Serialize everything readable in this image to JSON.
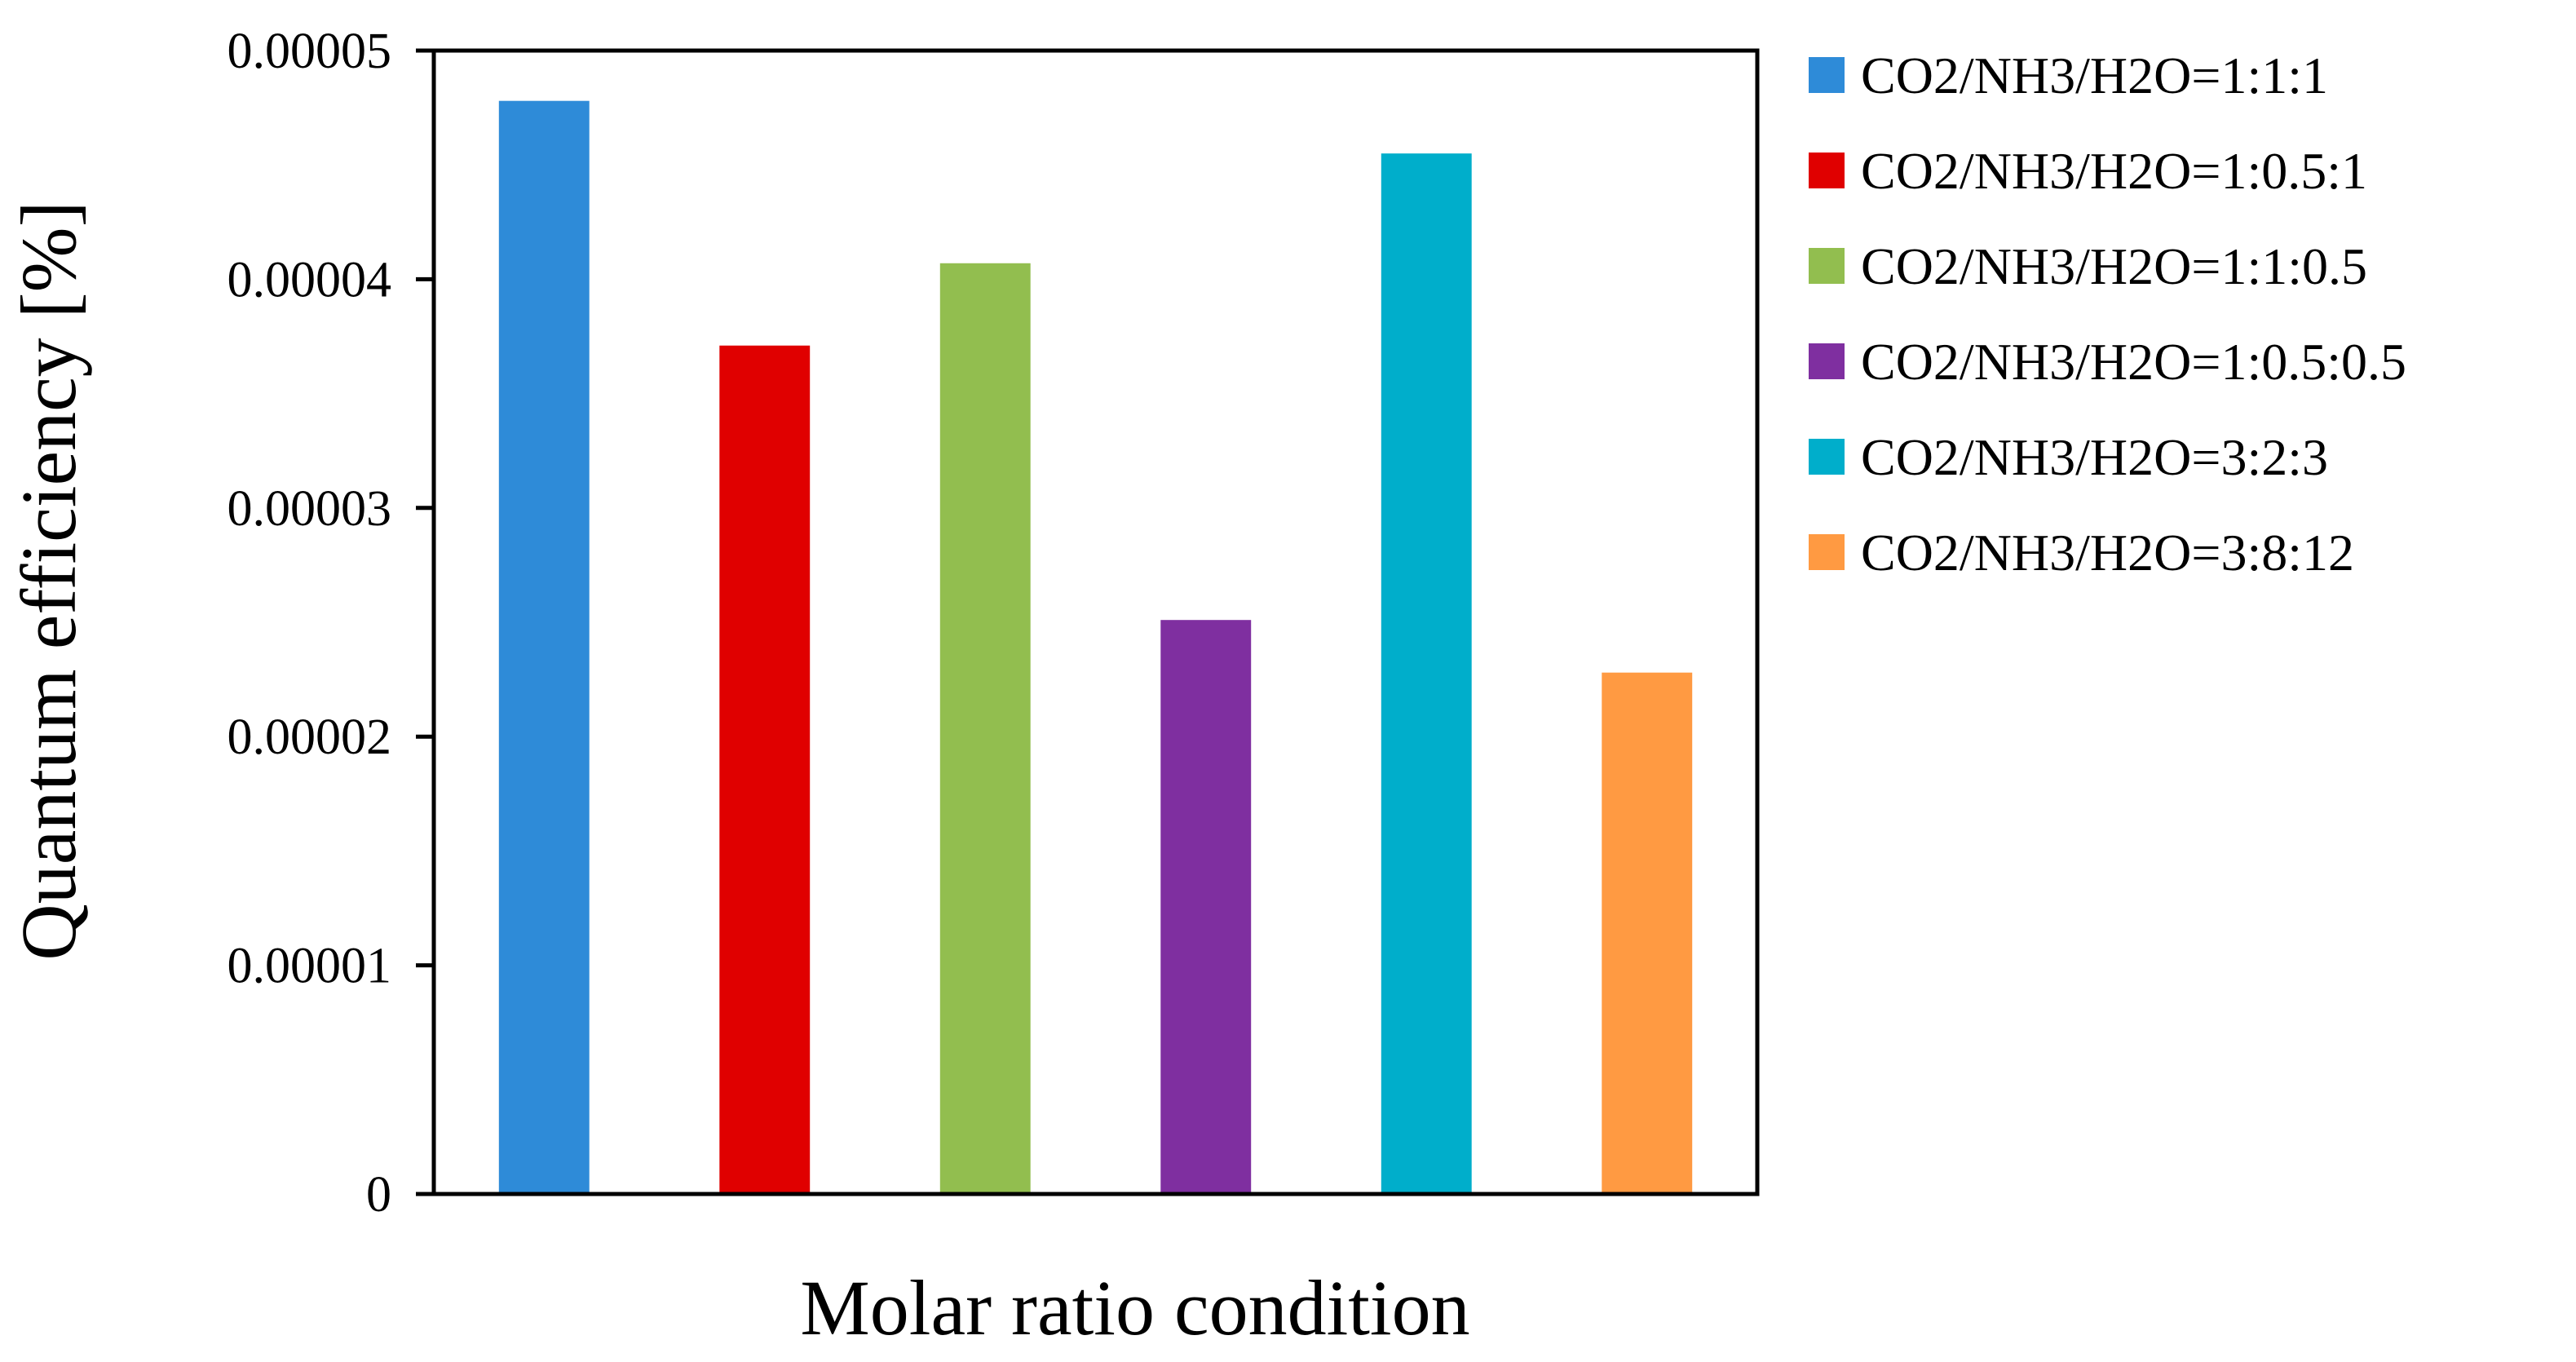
{
  "chart_data": {
    "type": "bar",
    "title": "",
    "xlabel": "Molar ratio condition",
    "ylabel": "Quantum efficiency [%]",
    "ylim": [
      0,
      5e-05
    ],
    "yticks": [
      "0",
      "0.00001",
      "0.00002",
      "0.00003",
      "0.00004",
      "0.00005"
    ],
    "ytick_values": [
      0,
      1e-05,
      2e-05,
      3e-05,
      4e-05,
      5e-05
    ],
    "grid": false,
    "legend_position": "right",
    "categories": [
      "CO2/NH3/H2O=1:1:1",
      "CO2/NH3/H2O=1:0.5:1",
      "CO2/NH3/H2O=1:1:0.5",
      "CO2/NH3/H2O=1:0.5:0.5",
      "CO2/NH3/H2O=3:2:3",
      "CO2/NH3/H2O=3:8:12"
    ],
    "values": [
      4.78e-05,
      3.71e-05,
      4.07e-05,
      2.51e-05,
      4.55e-05,
      2.28e-05
    ],
    "colors": [
      "#2E8BD8",
      "#E00000",
      "#92BE4F",
      "#7F2FA0",
      "#00AECB",
      "#FF9A42"
    ]
  }
}
